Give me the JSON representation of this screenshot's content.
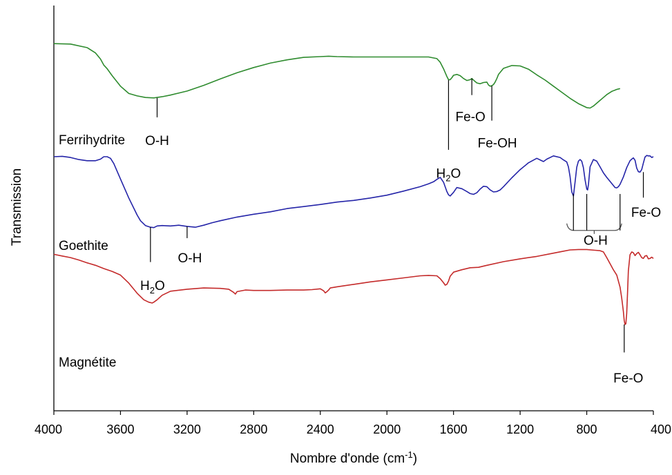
{
  "chart_data": {
    "type": "line",
    "title": "",
    "xlabel": "Nombre d'onde (cm",
    "xlabel_sup": "-1",
    "xlabel_suffix": ")",
    "ylabel": "Transmission",
    "xlim": [
      4000,
      400
    ],
    "x_reversed": true,
    "ylim": [
      0,
      100
    ],
    "y_ticks_shown": false,
    "grid": false,
    "legend": "none",
    "x_ticks": [
      "4000",
      "3600",
      "3200",
      "2800",
      "2400",
      "2000",
      "1600",
      "1200",
      "800",
      "400"
    ],
    "series": [
      {
        "name": "Ferrihydrite",
        "color": "#2e8b2e",
        "x": [
          4000,
          3900,
          3800,
          3750,
          3720,
          3700,
          3680,
          3650,
          3600,
          3550,
          3500,
          3450,
          3400,
          3350,
          3300,
          3200,
          3100,
          3000,
          2900,
          2800,
          2700,
          2600,
          2500,
          2400,
          2350,
          2300,
          2200,
          2100,
          2000,
          1900,
          1800,
          1750,
          1700,
          1680,
          1660,
          1640,
          1630,
          1620,
          1610,
          1600,
          1580,
          1560,
          1540,
          1520,
          1500,
          1490,
          1480,
          1460,
          1440,
          1420,
          1400,
          1390,
          1380,
          1370,
          1360,
          1350,
          1340,
          1330,
          1300,
          1250,
          1200,
          1150,
          1100,
          1050,
          1000,
          950,
          900,
          850,
          800,
          780,
          760,
          740,
          720,
          700,
          680,
          650,
          620,
          600
        ],
        "values": [
          90.6,
          90.5,
          89.6,
          88.3,
          86.8,
          85.3,
          84.4,
          82.7,
          80.1,
          78.3,
          77.7,
          77.3,
          77.2,
          77.5,
          77.9,
          78.9,
          80.3,
          81.9,
          83.4,
          84.7,
          85.8,
          86.6,
          87.2,
          87.4,
          87.5,
          87.4,
          87.3,
          87.3,
          87.3,
          87.3,
          87.3,
          87.3,
          86.9,
          86.0,
          84.4,
          82.5,
          81.7,
          81.7,
          82.2,
          82.8,
          83.0,
          82.7,
          82.0,
          81.5,
          81.7,
          82.0,
          81.6,
          80.9,
          80.7,
          81.0,
          81.1,
          80.4,
          80.1,
          80.2,
          80.5,
          81.1,
          82.0,
          83.0,
          84.5,
          85.2,
          85.1,
          84.3,
          82.9,
          81.6,
          80.1,
          78.6,
          77.1,
          75.8,
          74.8,
          74.7,
          75.2,
          75.9,
          76.6,
          77.3,
          78.0,
          78.8,
          79.3,
          79.5
        ]
      },
      {
        "name": "Goethite",
        "color": "#2424a8",
        "x": [
          4000,
          3950,
          3900,
          3850,
          3800,
          3750,
          3720,
          3700,
          3680,
          3660,
          3640,
          3600,
          3550,
          3500,
          3480,
          3450,
          3420,
          3400,
          3380,
          3350,
          3300,
          3250,
          3200,
          3150,
          3100,
          3050,
          3000,
          2900,
          2800,
          2700,
          2600,
          2500,
          2400,
          2300,
          2200,
          2100,
          2000,
          1900,
          1800,
          1750,
          1720,
          1700,
          1680,
          1660,
          1640,
          1630,
          1620,
          1600,
          1580,
          1550,
          1520,
          1500,
          1480,
          1460,
          1440,
          1420,
          1400,
          1380,
          1360,
          1340,
          1320,
          1300,
          1250,
          1200,
          1150,
          1100,
          1080,
          1060,
          1040,
          1000,
          960,
          940,
          920,
          910,
          900,
          890,
          880,
          870,
          860,
          850,
          840,
          830,
          820,
          810,
          800,
          795,
          790,
          780,
          760,
          740,
          720,
          700,
          680,
          660,
          640,
          630,
          620,
          610,
          600,
          580,
          560,
          540,
          530,
          520,
          510,
          500,
          490,
          480,
          470,
          460,
          450,
          440,
          430,
          420,
          410,
          400
        ],
        "values": [
          62.7,
          62.8,
          62.5,
          62.0,
          61.7,
          61.7,
          62.1,
          62.7,
          62.7,
          62.3,
          61.0,
          57.2,
          52.5,
          48.3,
          46.9,
          45.7,
          45.3,
          45.2,
          45.6,
          45.7,
          45.6,
          45.8,
          45.5,
          45.3,
          45.8,
          46.4,
          46.9,
          47.8,
          48.5,
          49.1,
          49.9,
          50.4,
          50.9,
          51.5,
          51.9,
          52.5,
          53.2,
          54.2,
          55.3,
          56.0,
          56.5,
          57.1,
          57.6,
          56.4,
          54.1,
          53.3,
          53.0,
          53.9,
          55.1,
          54.8,
          54.1,
          53.6,
          53.4,
          53.8,
          54.7,
          55.4,
          55.3,
          54.5,
          54.0,
          54.1,
          54.5,
          55.3,
          57.5,
          59.5,
          61.2,
          62.3,
          61.9,
          61.5,
          62.1,
          62.9,
          62.5,
          61.9,
          61.4,
          60.2,
          57.8,
          54.0,
          53.0,
          56.5,
          60.1,
          61.6,
          62.0,
          61.6,
          60.0,
          57.0,
          54.7,
          54.5,
          55.8,
          60.2,
          62.0,
          61.6,
          60.2,
          58.7,
          57.6,
          56.6,
          55.6,
          55.1,
          55.0,
          55.3,
          55.9,
          57.7,
          60.0,
          61.7,
          62.1,
          62.4,
          61.8,
          59.9,
          59.0,
          58.9,
          59.5,
          61.1,
          62.6,
          63.0,
          62.9,
          62.9,
          62.5,
          62.7
        ]
      },
      {
        "name": "Magnétite",
        "color": "#c42a2a",
        "x": [
          4000,
          3950,
          3900,
          3850,
          3800,
          3750,
          3700,
          3650,
          3600,
          3550,
          3500,
          3460,
          3430,
          3410,
          3400,
          3380,
          3350,
          3300,
          3200,
          3100,
          3000,
          2950,
          2920,
          2910,
          2900,
          2850,
          2800,
          2700,
          2600,
          2500,
          2450,
          2400,
          2380,
          2370,
          2360,
          2350,
          2340,
          2300,
          2200,
          2100,
          2000,
          1900,
          1800,
          1750,
          1700,
          1680,
          1660,
          1650,
          1640,
          1630,
          1620,
          1600,
          1550,
          1500,
          1450,
          1400,
          1300,
          1200,
          1100,
          1000,
          950,
          900,
          850,
          800,
          750,
          720,
          700,
          680,
          660,
          640,
          620,
          600,
          590,
          580,
          575,
          570,
          565,
          560,
          555,
          550,
          540,
          530,
          520,
          510,
          500,
          490,
          480,
          470,
          460,
          450,
          440,
          430,
          420,
          410,
          400
        ],
        "values": [
          38.6,
          38.2,
          37.8,
          37.2,
          36.5,
          35.9,
          35.1,
          34.4,
          33.5,
          31.5,
          29.0,
          27.4,
          26.8,
          26.6,
          26.8,
          27.4,
          28.5,
          29.5,
          30.0,
          30.3,
          30.2,
          30.0,
          29.2,
          28.8,
          29.4,
          29.8,
          29.7,
          29.7,
          29.8,
          29.8,
          29.9,
          30.1,
          29.6,
          29.1,
          29.4,
          29.8,
          30.3,
          30.6,
          31.2,
          31.8,
          32.3,
          32.8,
          33.3,
          33.4,
          33.3,
          32.6,
          31.6,
          31.0,
          31.2,
          32.0,
          33.2,
          34.2,
          34.8,
          35.3,
          35.4,
          35.9,
          36.8,
          37.5,
          38.1,
          38.9,
          39.3,
          39.7,
          39.8,
          39.8,
          39.6,
          39.5,
          39.2,
          37.8,
          36.3,
          34.8,
          33.5,
          30.5,
          27.8,
          24.5,
          22.3,
          21.3,
          21.5,
          24.0,
          29.0,
          34.5,
          38.5,
          39.2,
          39.0,
          38.3,
          38.8,
          39.1,
          38.5,
          37.8,
          37.6,
          38.2,
          38.3,
          37.5,
          37.6,
          37.9,
          37.6
        ]
      }
    ]
  },
  "labels": {
    "ferrihydrite": "Ferrihydrite",
    "goethite": "Goethite",
    "magnetite": "Magnétite",
    "oh": "O-H",
    "h2o_h": "H",
    "h2o_sub": "2",
    "h2o_o": "O",
    "feo": "Fe-O",
    "feoh": "Fe-OH"
  },
  "annotations": [
    {
      "id": "ferri-oh",
      "x": 3380,
      "y_from": 77.2,
      "y_to": 72.4,
      "text_key": "oh",
      "text_y": 65.6
    },
    {
      "id": "ferri-h2o",
      "x": 1630,
      "y_from": 81.6,
      "y_to": 64.4,
      "text_key": "h2o",
      "text_y": 57.5
    },
    {
      "id": "ferri-feo",
      "x": 1490,
      "y_from": 82.0,
      "y_to": 77.9,
      "text_key": "feo",
      "text_y": 71.5
    },
    {
      "id": "ferri-feoh",
      "x": 1370,
      "y_from": 80.2,
      "y_to": 71.6,
      "text_key": "feoh",
      "text_y": 65.0
    },
    {
      "id": "goe-h2o",
      "x": 3420,
      "y_from": 45.3,
      "y_to": 36.7,
      "text_key": "h2o",
      "text_y": 29.8
    },
    {
      "id": "goe-oh",
      "x": 3200,
      "y_from": 45.5,
      "y_to": 42.6,
      "text_key": "oh",
      "text_y": 36.6
    },
    {
      "id": "goe-feo",
      "x": 460,
      "y_from": 58.9,
      "y_to": 52.6,
      "text_key": "feo",
      "text_y": 47.9
    },
    {
      "id": "goe-oh-group",
      "x_start": 920,
      "x_end": 590,
      "x_lines": [
        880,
        800,
        600
      ],
      "text_key": "oh",
      "text_y": 41.0
    },
    {
      "id": "mag-feo",
      "x": 575,
      "y_from": 21.3,
      "y_to": 14.4,
      "text_key": "feo",
      "text_y": 7.0
    }
  ]
}
